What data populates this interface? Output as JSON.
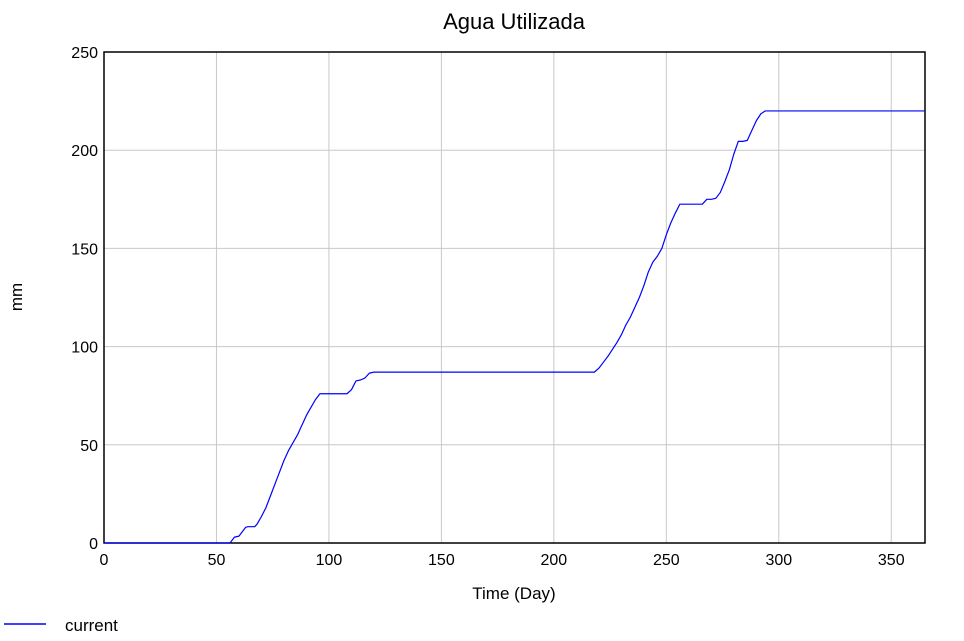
{
  "chart_data": {
    "type": "line",
    "title": "Agua Utilizada",
    "xlabel": "Time (Day)",
    "ylabel": "mm",
    "xlim": [
      0,
      365
    ],
    "ylim": [
      0,
      250
    ],
    "x_ticks": [
      0,
      50,
      100,
      150,
      200,
      250,
      300,
      350
    ],
    "y_ticks": [
      0,
      50,
      100,
      150,
      200,
      250
    ],
    "grid": true,
    "legend_position": "bottom-left",
    "series": [
      {
        "name": "current",
        "color": "#0000ff",
        "x": [
          0,
          56,
          58,
          60,
          63,
          64,
          67,
          68,
          70,
          72,
          74,
          76,
          78,
          80,
          82,
          84,
          86,
          88,
          90,
          92,
          94,
          96,
          100,
          104,
          108,
          110,
          112,
          114,
          116,
          118,
          120,
          130,
          150,
          180,
          200,
          218,
          220,
          222,
          224,
          226,
          228,
          230,
          232,
          234,
          236,
          238,
          240,
          242,
          244,
          246,
          248,
          250,
          252,
          254,
          256,
          260,
          266,
          268,
          270,
          272,
          274,
          276,
          278,
          280,
          282,
          284,
          286,
          288,
          290,
          292,
          294,
          296,
          300,
          320,
          340,
          365
        ],
        "y": [
          0,
          0,
          3,
          3.5,
          8,
          8.3,
          8.3,
          9.5,
          13.5,
          18,
          24,
          30,
          36,
          42,
          47,
          51,
          55,
          60,
          65,
          69,
          73,
          76,
          76,
          76,
          76,
          78,
          82.5,
          83,
          84,
          86.5,
          87,
          87,
          87,
          87,
          87,
          87,
          89,
          92,
          95,
          98.5,
          102,
          106,
          111,
          115,
          120,
          125,
          131,
          138,
          143,
          146,
          150,
          157,
          163,
          168,
          172.5,
          172.5,
          172.5,
          175,
          175,
          175.5,
          178.5,
          184,
          190,
          198,
          204.5,
          204.5,
          205,
          210,
          215,
          218.5,
          220,
          220,
          220,
          220,
          220,
          220
        ]
      }
    ]
  }
}
